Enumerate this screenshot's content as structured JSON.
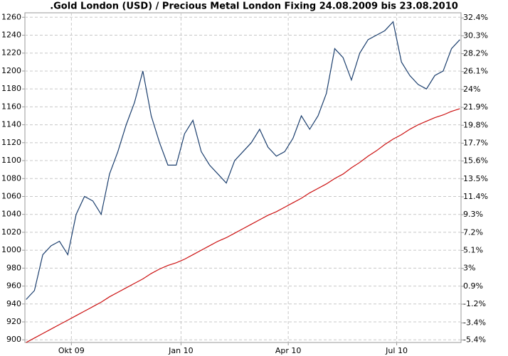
{
  "chart_data": {
    "type": "line",
    "title": ".Gold London (USD) / Precious Metal London Fixing 24.08.2009 bis 23.08.2010",
    "x": [
      "24.08.2009",
      "31.08.2009",
      "07.09.2009",
      "14.09.2009",
      "21.09.2009",
      "28.09.2009",
      "05.10.2009",
      "12.10.2009",
      "19.10.2009",
      "26.10.2009",
      "02.11.2009",
      "09.11.2009",
      "16.11.2009",
      "23.11.2009",
      "30.11.2009",
      "07.12.2009",
      "14.12.2009",
      "21.12.2009",
      "28.12.2009",
      "04.01.2010",
      "11.01.2010",
      "18.01.2010",
      "25.01.2010",
      "01.02.2010",
      "08.02.2010",
      "15.02.2010",
      "22.02.2010",
      "01.03.2010",
      "08.03.2010",
      "15.03.2010",
      "22.03.2010",
      "29.03.2010",
      "05.04.2010",
      "12.04.2010",
      "19.04.2010",
      "26.04.2010",
      "03.05.2010",
      "10.05.2010",
      "17.05.2010",
      "24.05.2010",
      "31.05.2010",
      "07.06.2010",
      "14.06.2010",
      "21.06.2010",
      "28.06.2010",
      "05.07.2010",
      "12.07.2010",
      "19.07.2010",
      "26.07.2010",
      "02.08.2010",
      "09.08.2010",
      "16.08.2010",
      "23.08.2010"
    ],
    "series": [
      {
        "color": "#1c3f6e",
        "values": [
          945,
          955,
          995,
          1005,
          1010,
          995,
          1040,
          1060,
          1055,
          1040,
          1085,
          1110,
          1140,
          1165,
          1200,
          1150,
          1120,
          1095,
          1095,
          1130,
          1145,
          1110,
          1095,
          1085,
          1075,
          1100,
          1110,
          1120,
          1135,
          1115,
          1105,
          1110,
          1125,
          1150,
          1135,
          1150,
          1175,
          1225,
          1215,
          1190,
          1220,
          1235,
          1240,
          1245,
          1255,
          1210,
          1195,
          1185,
          1180,
          1195,
          1200,
          1225,
          1235
        ]
      },
      {
        "color": "#cc1111",
        "values": [
          897,
          902,
          907,
          912,
          917,
          922,
          927,
          932,
          937,
          942,
          948,
          953,
          958,
          963,
          968,
          974,
          979,
          983,
          986,
          990,
          995,
          1000,
          1005,
          1010,
          1014,
          1019,
          1024,
          1029,
          1034,
          1039,
          1043,
          1048,
          1053,
          1058,
          1064,
          1069,
          1074,
          1080,
          1085,
          1092,
          1098,
          1105,
          1111,
          1118,
          1124,
          1129,
          1135,
          1140,
          1144,
          1148,
          1151,
          1155,
          1158
        ]
      }
    ],
    "xlim": [
      "23.08.2009",
      "24.08.2010"
    ],
    "xticks": [
      {
        "value": "01.10.2009",
        "label": "Okt 09"
      },
      {
        "value": "01.01.2010",
        "label": "Jan 10"
      },
      {
        "value": "01.04.2010",
        "label": "Apr 10"
      },
      {
        "value": "01.07.2010",
        "label": "Jul 10"
      }
    ],
    "ylim": [
      897,
      1265
    ],
    "yticks": [
      900,
      920,
      940,
      960,
      980,
      1000,
      1020,
      1040,
      1060,
      1080,
      1100,
      1120,
      1140,
      1160,
      1180,
      1200,
      1220,
      1240,
      1260
    ],
    "y2lim": [
      -5.7,
      33.0
    ],
    "y2ticks": [
      {
        "value": 32.4,
        "label": "32.4%"
      },
      {
        "value": 30.3,
        "label": "30.3%"
      },
      {
        "value": 28.2,
        "label": "28.2%"
      },
      {
        "value": 26.1,
        "label": "26.1%"
      },
      {
        "value": 24,
        "label": "24%"
      },
      {
        "value": 21.9,
        "label": "21.9%"
      },
      {
        "value": 19.8,
        "label": "19.8%"
      },
      {
        "value": 17.7,
        "label": "17.7%"
      },
      {
        "value": 15.6,
        "label": "15.6%"
      },
      {
        "value": 13.5,
        "label": "13.5%"
      },
      {
        "value": 11.4,
        "label": "11.4%"
      },
      {
        "value": 9.3,
        "label": "9.3%"
      },
      {
        "value": 7.2,
        "label": "7.2%"
      },
      {
        "value": 5.1,
        "label": "5.1%"
      },
      {
        "value": 3,
        "label": "3%"
      },
      {
        "value": 0.9,
        "label": "0.9%"
      },
      {
        "value": -1.2,
        "label": "-1.2%"
      },
      {
        "value": -3.4,
        "label": "-3.4%"
      },
      {
        "value": -5.4,
        "label": "-5.4%"
      }
    ],
    "grid": true
  }
}
